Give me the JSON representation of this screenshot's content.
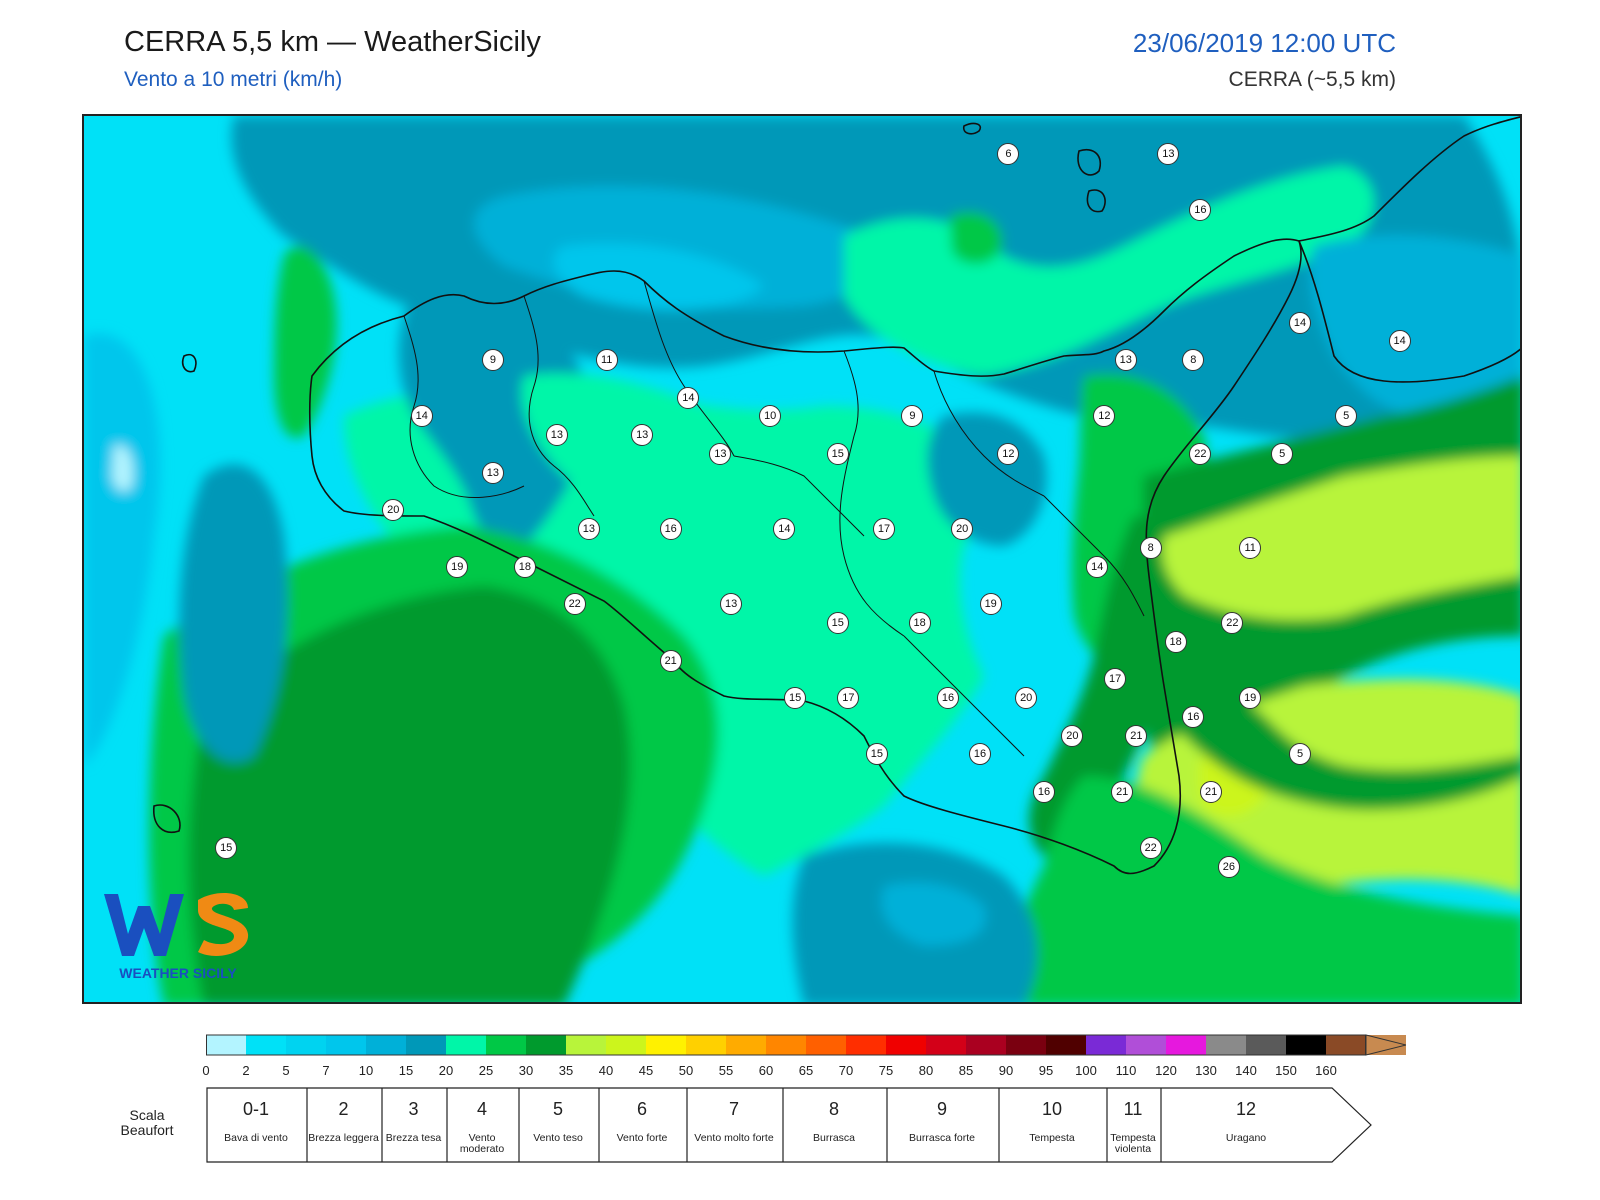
{
  "header": {
    "title": "CERRA 5,5 km — WeatherSicily",
    "subtitle": "Vento a 10 metri (km/h)",
    "datetime": "23/06/2019 12:00 UTC",
    "model": "CERRA (~5,5 km)"
  },
  "logo": {
    "text": "WEATHER SICILY",
    "letters": "WS"
  },
  "colors": {
    "lightcyan": "#b3f4ff",
    "cyan": "#00e1f7",
    "deepsky": "#00c6ec",
    "lightblue": "#00b0d8",
    "teal": "#0098b8",
    "aqua": "#00f6a8",
    "green": "#00c846",
    "darkgreen": "#009a2d",
    "lime": "#b8f43a",
    "yellowgreen": "#ccf51c"
  },
  "stations": [
    {
      "v": "6",
      "lon": 14.6,
      "lat": 38.62
    },
    {
      "v": "13",
      "lon": 15.05,
      "lat": 38.62
    },
    {
      "v": "16",
      "lon": 15.14,
      "lat": 38.47
    },
    {
      "v": "14",
      "lon": 15.42,
      "lat": 38.17
    },
    {
      "v": "14",
      "lon": 15.7,
      "lat": 38.12
    },
    {
      "v": "9",
      "lon": 13.15,
      "lat": 38.07
    },
    {
      "v": "11",
      "lon": 13.47,
      "lat": 38.07
    },
    {
      "v": "14",
      "lon": 13.7,
      "lat": 37.97
    },
    {
      "v": "13",
      "lon": 14.93,
      "lat": 38.07
    },
    {
      "v": "8",
      "lon": 15.12,
      "lat": 38.07
    },
    {
      "v": "14",
      "lon": 12.95,
      "lat": 37.92
    },
    {
      "v": "10",
      "lon": 13.93,
      "lat": 37.92
    },
    {
      "v": "9",
      "lon": 14.33,
      "lat": 37.92
    },
    {
      "v": "12",
      "lon": 14.87,
      "lat": 37.92
    },
    {
      "v": "5",
      "lon": 15.55,
      "lat": 37.92
    },
    {
      "v": "13",
      "lon": 13.33,
      "lat": 37.87
    },
    {
      "v": "13",
      "lon": 13.57,
      "lat": 37.87
    },
    {
      "v": "13",
      "lon": 13.79,
      "lat": 37.82
    },
    {
      "v": "15",
      "lon": 14.12,
      "lat": 37.82
    },
    {
      "v": "12",
      "lon": 14.6,
      "lat": 37.82
    },
    {
      "v": "22",
      "lon": 15.14,
      "lat": 37.82
    },
    {
      "v": "5",
      "lon": 15.37,
      "lat": 37.82
    },
    {
      "v": "13",
      "lon": 13.15,
      "lat": 37.77
    },
    {
      "v": "20",
      "lon": 12.87,
      "lat": 37.67
    },
    {
      "v": "13",
      "lon": 13.42,
      "lat": 37.62
    },
    {
      "v": "16",
      "lon": 13.65,
      "lat": 37.62
    },
    {
      "v": "14",
      "lon": 13.97,
      "lat": 37.62
    },
    {
      "v": "17",
      "lon": 14.25,
      "lat": 37.62
    },
    {
      "v": "20",
      "lon": 14.47,
      "lat": 37.62
    },
    {
      "v": "8",
      "lon": 15.0,
      "lat": 37.57
    },
    {
      "v": "11",
      "lon": 15.28,
      "lat": 37.57
    },
    {
      "v": "19",
      "lon": 13.05,
      "lat": 37.52
    },
    {
      "v": "18",
      "lon": 13.24,
      "lat": 37.52
    },
    {
      "v": "14",
      "lon": 14.85,
      "lat": 37.52
    },
    {
      "v": "22",
      "lon": 13.38,
      "lat": 37.42
    },
    {
      "v": "13",
      "lon": 13.82,
      "lat": 37.42
    },
    {
      "v": "19",
      "lon": 14.55,
      "lat": 37.42
    },
    {
      "v": "15",
      "lon": 14.12,
      "lat": 37.37
    },
    {
      "v": "18",
      "lon": 14.35,
      "lat": 37.37
    },
    {
      "v": "22",
      "lon": 15.23,
      "lat": 37.37
    },
    {
      "v": "18",
      "lon": 15.07,
      "lat": 37.32
    },
    {
      "v": "21",
      "lon": 13.65,
      "lat": 37.27
    },
    {
      "v": "17",
      "lon": 14.9,
      "lat": 37.22
    },
    {
      "v": "15",
      "lon": 14.0,
      "lat": 37.17
    },
    {
      "v": "17",
      "lon": 14.15,
      "lat": 37.17
    },
    {
      "v": "16",
      "lon": 14.43,
      "lat": 37.17
    },
    {
      "v": "20",
      "lon": 14.65,
      "lat": 37.17
    },
    {
      "v": "19",
      "lon": 15.28,
      "lat": 37.17
    },
    {
      "v": "16",
      "lon": 15.12,
      "lat": 37.12
    },
    {
      "v": "20",
      "lon": 14.78,
      "lat": 37.07
    },
    {
      "v": "21",
      "lon": 14.96,
      "lat": 37.07
    },
    {
      "v": "5",
      "lon": 15.42,
      "lat": 37.02
    },
    {
      "v": "15",
      "lon": 14.23,
      "lat": 37.02
    },
    {
      "v": "16",
      "lon": 14.52,
      "lat": 37.02
    },
    {
      "v": "16",
      "lon": 14.7,
      "lat": 36.92
    },
    {
      "v": "21",
      "lon": 14.92,
      "lat": 36.92
    },
    {
      "v": "21",
      "lon": 15.17,
      "lat": 36.92
    },
    {
      "v": "15",
      "lon": 12.4,
      "lat": 36.77
    },
    {
      "v": "22",
      "lon": 15.0,
      "lat": 36.77
    },
    {
      "v": "26",
      "lon": 15.22,
      "lat": 36.72
    }
  ],
  "colorbar": {
    "ticks": [
      "0",
      "2",
      "5",
      "7",
      "10",
      "15",
      "20",
      "25",
      "30",
      "35",
      "40",
      "45",
      "50",
      "55",
      "60",
      "65",
      "70",
      "75",
      "80",
      "85",
      "90",
      "95",
      "100",
      "110",
      "120",
      "130",
      "140",
      "150",
      "160"
    ],
    "colors": [
      "#b3f4ff",
      "#00e1f7",
      "#00d3f0",
      "#00c6ec",
      "#00b0d8",
      "#0098b8",
      "#00f6a8",
      "#00c846",
      "#009a2d",
      "#b8f43a",
      "#ccf51c",
      "#fff100",
      "#ffd000",
      "#ffab00",
      "#ff8600",
      "#ff6000",
      "#ff2e00",
      "#f00000",
      "#d30018",
      "#aa0020",
      "#7a0010",
      "#500000",
      "#7a2ad6",
      "#b04ed8",
      "#e618de",
      "#8a8a8a",
      "#5a5a5a",
      "#000000",
      "#8a4a26",
      "#c88a50"
    ]
  },
  "beaufort": {
    "title": "Scala Beaufort",
    "cells": [
      {
        "num": "0-1",
        "desc": "Bava di vento"
      },
      {
        "num": "2",
        "desc": "Brezza leggera"
      },
      {
        "num": "3",
        "desc": "Brezza tesa"
      },
      {
        "num": "4",
        "desc": "Vento moderato"
      },
      {
        "num": "5",
        "desc": "Vento teso"
      },
      {
        "num": "6",
        "desc": "Vento forte"
      },
      {
        "num": "7",
        "desc": "Vento molto forte"
      },
      {
        "num": "8",
        "desc": "Burrasca"
      },
      {
        "num": "9",
        "desc": "Burrasca forte"
      },
      {
        "num": "10",
        "desc": "Tempesta"
      },
      {
        "num": "11",
        "desc": "Tempesta violenta"
      },
      {
        "num": "12",
        "desc": "Uragano"
      }
    ]
  }
}
